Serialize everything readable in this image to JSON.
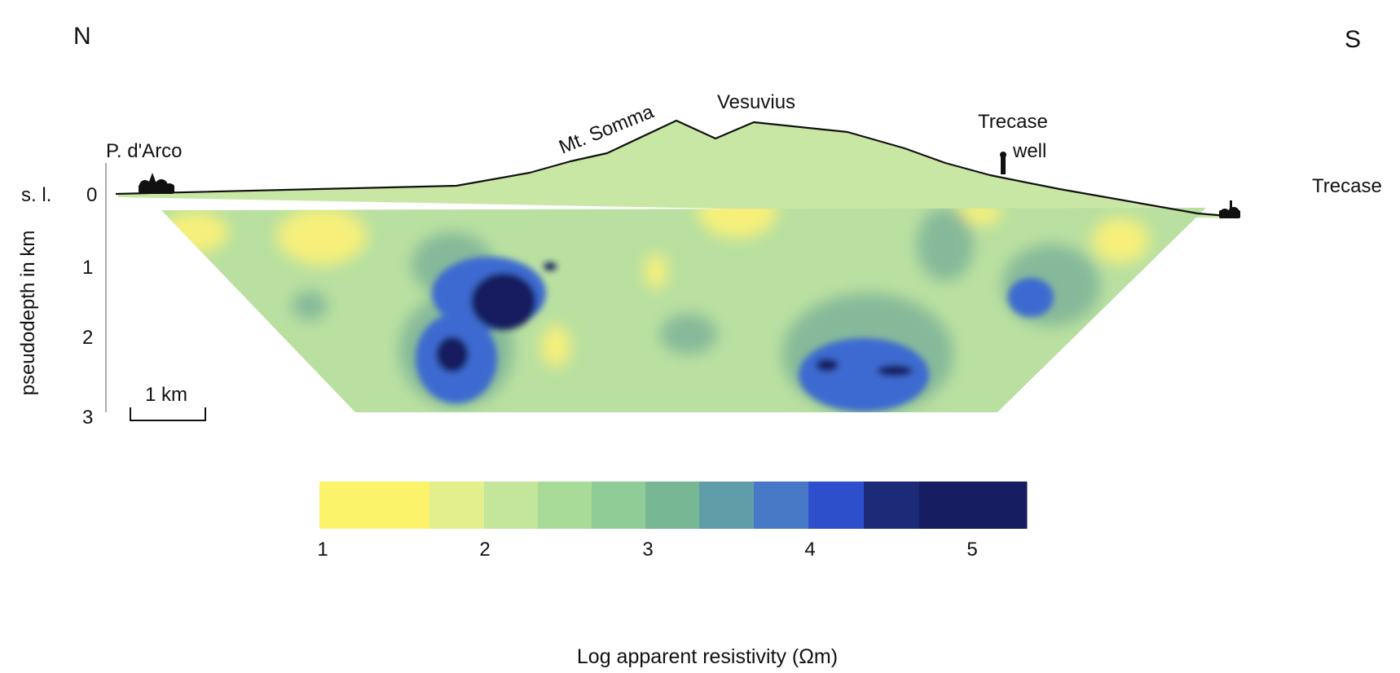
{
  "orientation": {
    "north": "N",
    "south": "S"
  },
  "places": {
    "p_darco": "P. d'Arco",
    "mt_somma": "Mt. Somma",
    "vesuvius": "Vesuvius",
    "trecase_well_line1": "Trecase",
    "trecase_well_line2": "well",
    "trecase": "Trecase"
  },
  "depth_axis": {
    "title": "pseudodepth in km",
    "sea_level_prefix": "s. l.",
    "ticks": [
      "0",
      "1",
      "2",
      "3"
    ]
  },
  "scale_bar": {
    "label": "1 km",
    "length_km": 1
  },
  "legend": {
    "title": "Log apparent resistivity (Ωm)",
    "ticks": [
      "1",
      "2",
      "3",
      "4",
      "5"
    ],
    "colors": [
      "#fbf36a",
      "#e3ef8c",
      "#c3e69a",
      "#a8db98",
      "#8fcc96",
      "#77b794",
      "#5f9ea8",
      "#4678c6",
      "#2e4fcc",
      "#1d2a78",
      "#161d60"
    ]
  },
  "colors": {
    "section_background": "#b9e0a0",
    "topography_line": "#111111",
    "blob_yellow": "#f6f07a",
    "blob_teal": "#86b99a",
    "blob_blue": "#3c6bd0",
    "blob_dark": "#141b5e"
  }
}
